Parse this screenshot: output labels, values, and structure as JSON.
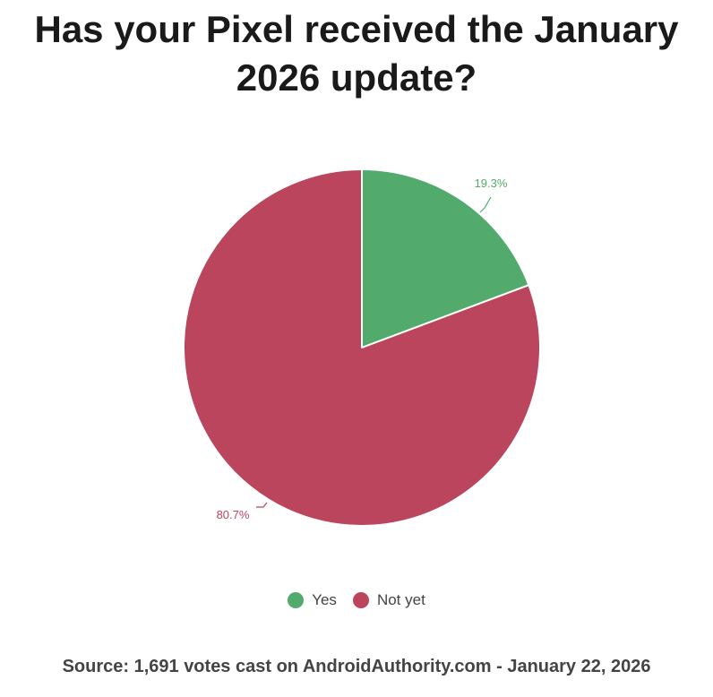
{
  "title": "Has your Pixel received the January 2026 update?",
  "source": "Source: 1,691 votes cast on AndroidAuthority.com - January 22, 2026",
  "chart_data": {
    "type": "pie",
    "title": "Has your Pixel received the January 2026 update?",
    "slices": [
      {
        "name": "Yes",
        "value": 19.3,
        "label": "19.3%",
        "color": "#52ab6c"
      },
      {
        "name": "Not yet",
        "value": 80.7,
        "label": "80.7%",
        "color": "#bb455c"
      }
    ],
    "legend_position": "bottom"
  }
}
